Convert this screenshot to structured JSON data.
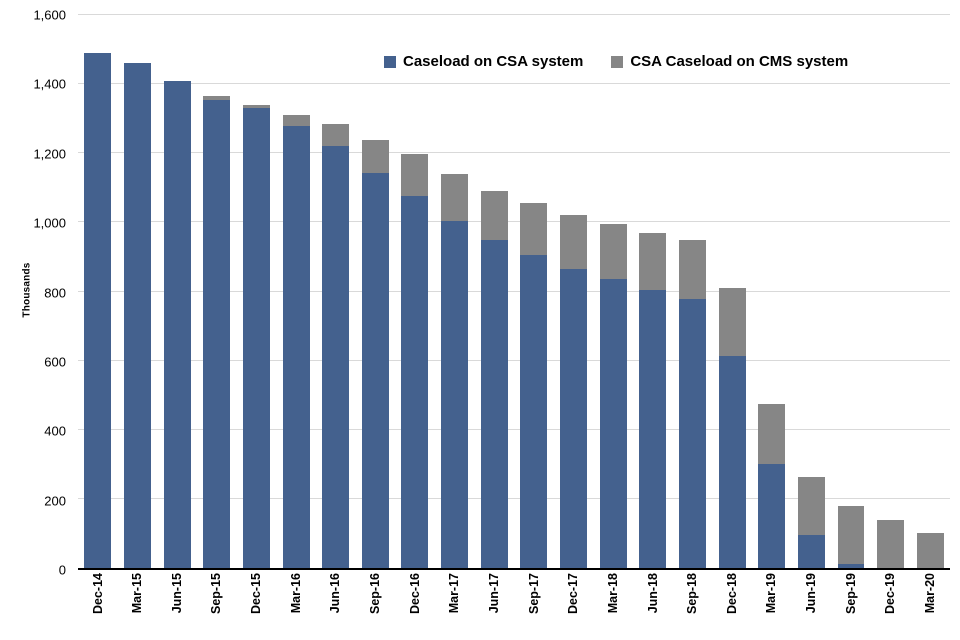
{
  "chart_data": {
    "type": "bar",
    "stacked": true,
    "title": "",
    "ylabel": "Thousands",
    "xlabel": "",
    "ylim": [
      0,
      1600
    ],
    "ytick_values": [
      0,
      200,
      400,
      600,
      800,
      1000,
      1200,
      1400,
      1600
    ],
    "ytick_labels": [
      "0",
      "200",
      "400",
      "600",
      "800",
      "1,000",
      "1,200",
      "1,400",
      "1,600"
    ],
    "grid": true,
    "legend_position": "top-inside",
    "categories": [
      "Dec-14",
      "Mar-15",
      "Jun-15",
      "Sep-15",
      "Dec-15",
      "Mar-16",
      "Jun-16",
      "Sep-16",
      "Dec-16",
      "Mar-17",
      "Jun-17",
      "Sep-17",
      "Dec-17",
      "Mar-18",
      "Jun-18",
      "Sep-18",
      "Dec-18",
      "Mar-19",
      "Jun-19",
      "Sep-19",
      "Dec-19",
      "Mar-20"
    ],
    "series": [
      {
        "name": "Caseload on CSA system",
        "color": "#44618E",
        "values": [
          1490,
          1460,
          1410,
          1355,
          1330,
          1280,
          1222,
          1142,
          1077,
          1005,
          950,
          905,
          865,
          835,
          805,
          778,
          612,
          300,
          95,
          12,
          0,
          0
        ]
      },
      {
        "name": "CSA Caseload on CMS system",
        "color": "#868686",
        "values": [
          0,
          0,
          0,
          10,
          10,
          32,
          63,
          95,
          122,
          135,
          142,
          150,
          155,
          160,
          165,
          172,
          198,
          175,
          167,
          168,
          140,
          100
        ]
      }
    ],
    "gridline_color": "#d9d9d9",
    "axis_color": "#000000"
  }
}
